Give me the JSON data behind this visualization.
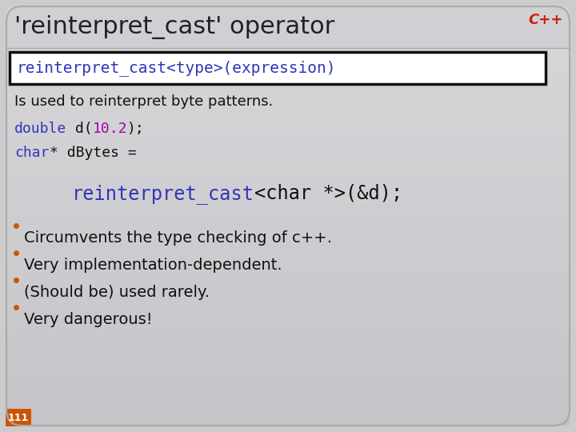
{
  "bg_top_color": "#d0d0d0",
  "bg_bottom_color": "#c0c0c0",
  "title": "'reinterpret_cast' operator",
  "title_color": "#222222",
  "title_fontsize": 22,
  "cpp_label": "C++",
  "cpp_color": "#cc2200",
  "cpp_fontsize": 13,
  "syntax_box_text": "reinterpret_cast<type>(expression)",
  "syntax_blue": "#3333bb",
  "syntax_box_border": "#111111",
  "syntax_fontsize": 14,
  "description": "Is used to reinterpret byte patterns.",
  "desc_color": "#111111",
  "desc_fontsize": 13,
  "code1_parts": [
    {
      "text": "double",
      "color": "#3333bb"
    },
    {
      "text": " d(",
      "color": "#111111"
    },
    {
      "text": "10.2",
      "color": "#aa00aa"
    },
    {
      "text": ");",
      "color": "#111111"
    }
  ],
  "code2_parts": [
    {
      "text": "char",
      "color": "#3333bb"
    },
    {
      "text": "* dBytes =",
      "color": "#111111"
    }
  ],
  "code3_parts": [
    {
      "text": "reinterpret_cast",
      "color": "#3333bb"
    },
    {
      "text": "<char *>(&d);",
      "color": "#111111"
    }
  ],
  "code_fontsize": 13,
  "code3_fontsize": 17,
  "bullet_dot_color": "#cc5500",
  "bullet_items": [
    "Circumvents the type checking of c++.",
    "Very implementation-dependent.",
    "(Should be) used rarely.",
    "Very dangerous!"
  ],
  "bullet_text_color": "#111111",
  "bullet_fontsize": 14,
  "page_num": "111",
  "page_num_color": "#cc2200",
  "page_num_fontsize": 9
}
